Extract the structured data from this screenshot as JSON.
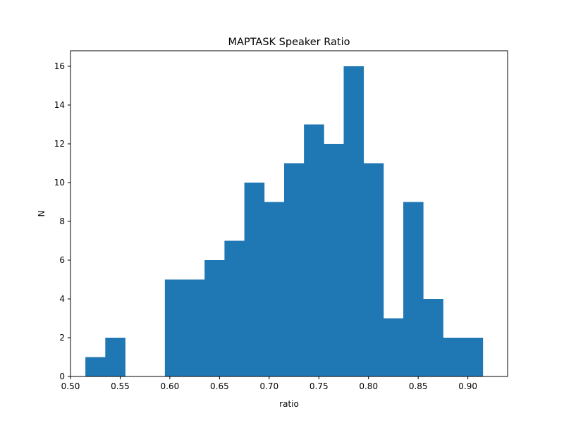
{
  "chart_data": {
    "type": "bar",
    "title": "MAPTASK Speaker Ratio",
    "xlabel": "ratio",
    "ylabel": "N",
    "xlim": [
      0.5,
      0.94
    ],
    "ylim": [
      0,
      16.8
    ],
    "xticks": [
      "0.50",
      "0.55",
      "0.60",
      "0.65",
      "0.70",
      "0.75",
      "0.80",
      "0.85",
      "0.90"
    ],
    "yticks": [
      "0",
      "2",
      "4",
      "6",
      "8",
      "10",
      "12",
      "14",
      "16"
    ],
    "grid": false,
    "bin_edges": [
      0.515,
      0.535,
      0.555,
      0.575,
      0.595,
      0.615,
      0.635,
      0.655,
      0.675,
      0.695,
      0.715,
      0.735,
      0.755,
      0.775,
      0.795,
      0.815,
      0.835,
      0.855,
      0.875,
      0.895,
      0.915
    ],
    "values": [
      1,
      2,
      0,
      0,
      5,
      5,
      6,
      7,
      10,
      9,
      11,
      13,
      12,
      16,
      11,
      3,
      9,
      4,
      2,
      2
    ],
    "bar_color": "#1f77b4"
  }
}
